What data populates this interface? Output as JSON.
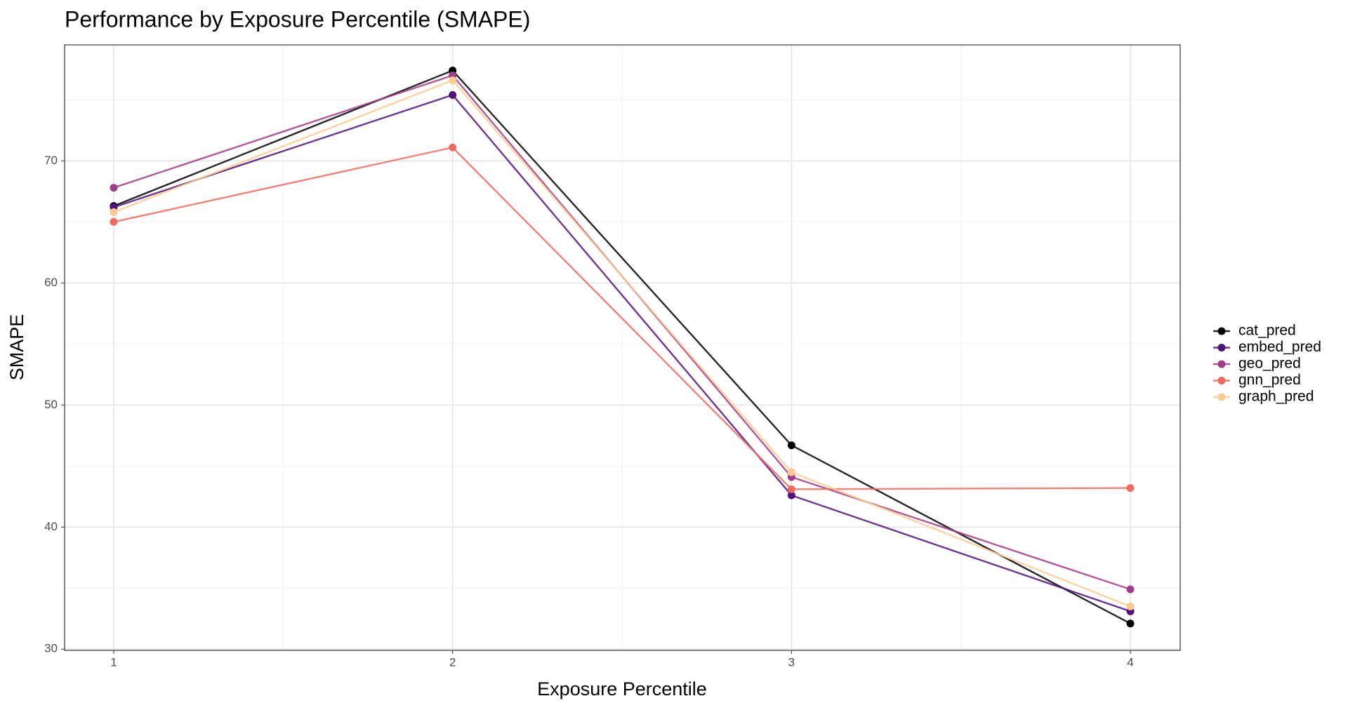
{
  "chart_data": {
    "type": "line",
    "title": "Performance by Exposure Percentile (SMAPE)",
    "x_label": "Exposure Percentile",
    "y_label": "SMAPE",
    "x": [
      1,
      2,
      3,
      4
    ],
    "series": [
      {
        "name": "cat_pred",
        "color": "#000004",
        "values": [
          66.3,
          77.4,
          46.7,
          32.1
        ]
      },
      {
        "name": "embed_pred",
        "color": "#51127c",
        "values": [
          66.2,
          75.4,
          42.6,
          33.1
        ]
      },
      {
        "name": "geo_pred",
        "color": "#a23b8a",
        "values": [
          67.8,
          77.0,
          44.1,
          34.9
        ]
      },
      {
        "name": "gnn_pred",
        "color": "#ef6a5f",
        "values": [
          65.0,
          71.1,
          43.1,
          43.2
        ]
      },
      {
        "name": "graph_pred",
        "color": "#fdcb8f",
        "values": [
          65.8,
          76.6,
          44.5,
          33.5
        ]
      }
    ],
    "xlim": [
      0.855,
      4.147
    ],
    "ylim": [
      29.9,
      79.5
    ],
    "xticks": [
      1,
      2,
      3,
      4
    ],
    "yticks": [
      30,
      40,
      50,
      60,
      70
    ],
    "grid": true,
    "legend": "right"
  }
}
